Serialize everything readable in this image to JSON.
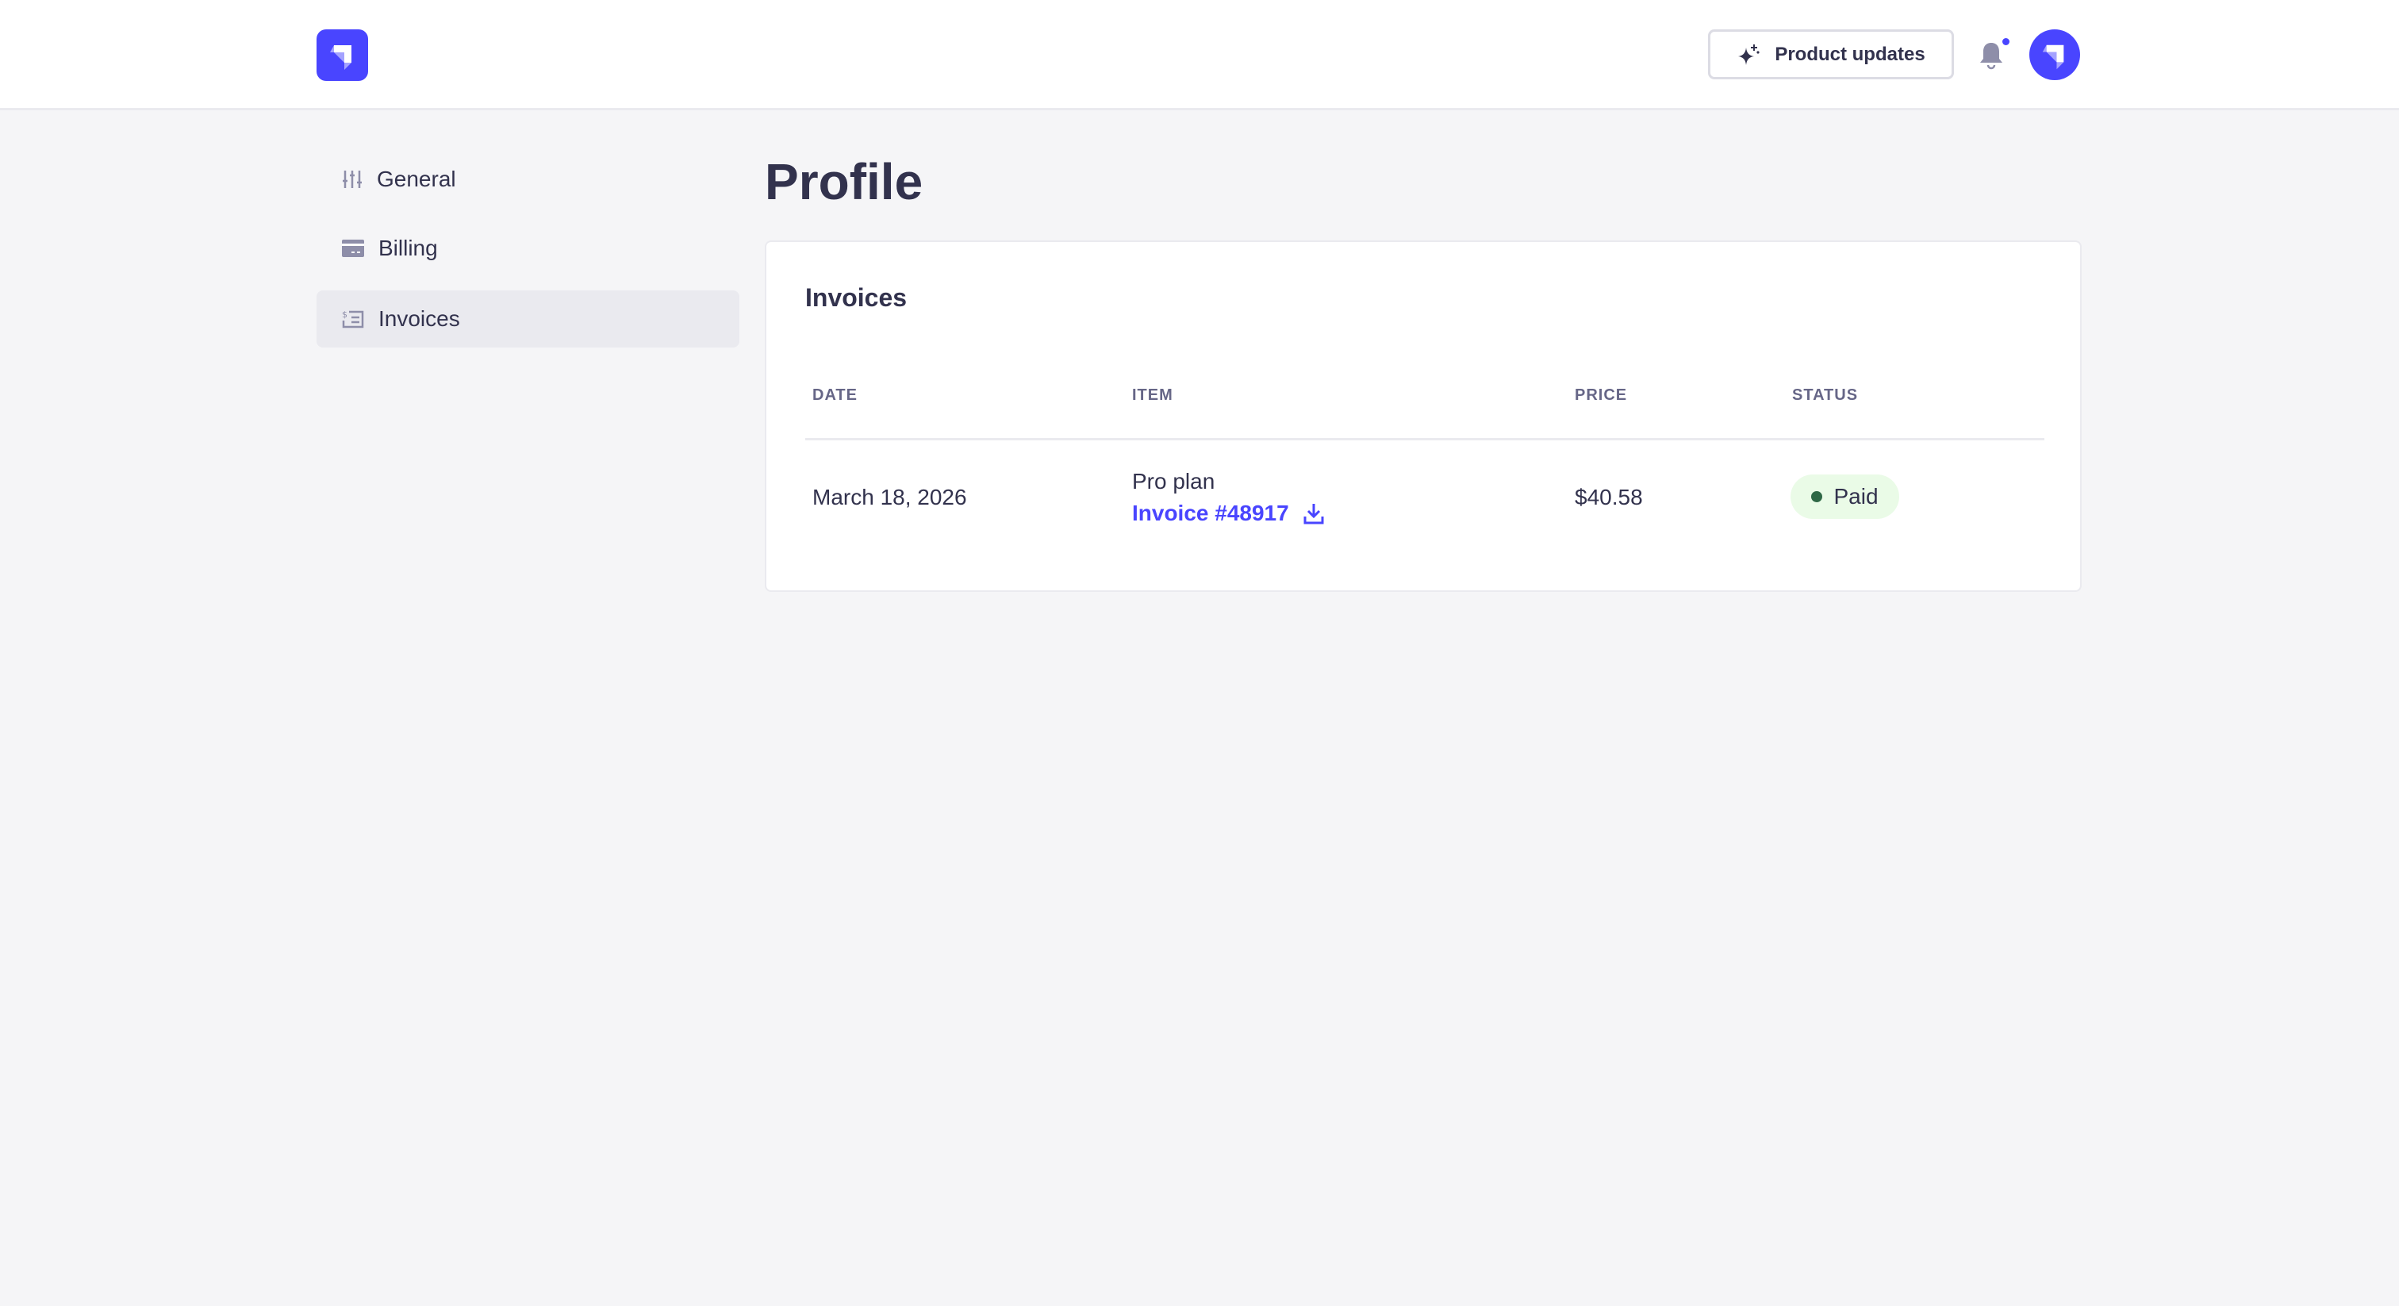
{
  "header": {
    "product_updates_label": "Product updates",
    "notification_unread": true
  },
  "sidebar": {
    "items": [
      {
        "label": "General",
        "icon": "sliders-icon"
      },
      {
        "label": "Billing",
        "icon": "credit-card-icon"
      },
      {
        "label": "Invoices",
        "icon": "invoice-icon",
        "active": true
      }
    ]
  },
  "page": {
    "title": "Profile"
  },
  "invoices": {
    "heading": "Invoices",
    "columns": [
      "DATE",
      "ITEM",
      "PRICE",
      "STATUS"
    ],
    "rows": [
      {
        "date": "March 18, 2026",
        "item": "Pro plan",
        "invoice_link": "Invoice #48917",
        "price": "$40.58",
        "status": "Paid"
      }
    ]
  },
  "colors": {
    "accent": "#4945ff",
    "paid_bg": "#eafbe7",
    "paid_dot": "#2f6846"
  }
}
